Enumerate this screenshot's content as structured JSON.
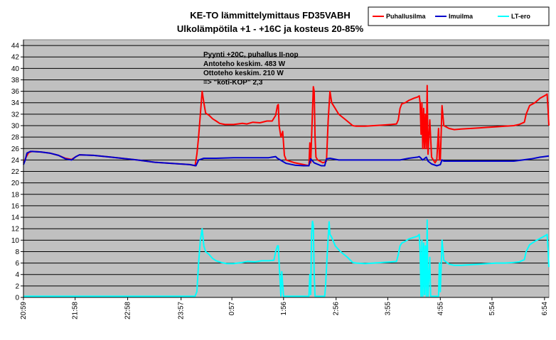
{
  "chart_data": {
    "type": "line",
    "title": "KE-TO lämmittelymittaus FD35VABH",
    "subtitle": "Ulkolämpötila +1 - +16C ja kosteus 20-85%",
    "xlabel": "",
    "ylabel": "",
    "ylim": [
      0,
      45
    ],
    "yticks": [
      0,
      2,
      4,
      6,
      8,
      10,
      12,
      14,
      16,
      18,
      20,
      22,
      24,
      26,
      28,
      30,
      32,
      34,
      36,
      38,
      40,
      42,
      44
    ],
    "xlim": [
      0,
      600
    ],
    "x_tick_labels": [
      {
        "x": 0,
        "label": "20:59"
      },
      {
        "x": 59,
        "label": "21:58"
      },
      {
        "x": 119,
        "label": "22:58"
      },
      {
        "x": 180,
        "label": "23:57"
      },
      {
        "x": 238,
        "label": "0:57"
      },
      {
        "x": 297,
        "label": "1:56"
      },
      {
        "x": 357,
        "label": "2:56"
      },
      {
        "x": 416,
        "label": "3:55"
      },
      {
        "x": 476,
        "label": "4:55"
      },
      {
        "x": 535,
        "label": "5:54"
      },
      {
        "x": 595,
        "label": "6:54"
      }
    ],
    "grid": true,
    "legend_position": "top-right",
    "annotations": [
      "Pyynti +20C, puhallus II-nop",
      "Antoteho keskim. 483 W",
      "Ottoteho keskim. 210 W",
      "=> \"koti-KOP\" 2,3"
    ],
    "series": [
      {
        "name": "Puhallusilma",
        "color": "#ff0000",
        "points": [
          [
            0,
            23.5
          ],
          [
            3,
            24.5
          ],
          [
            6,
            25.3
          ],
          [
            10,
            25.5
          ],
          [
            20,
            25.4
          ],
          [
            30,
            25.2
          ],
          [
            40,
            24.8
          ],
          [
            48,
            24.3
          ],
          [
            55,
            24.1
          ],
          [
            60,
            24.6
          ],
          [
            64,
            24.9
          ],
          [
            80,
            24.8
          ],
          [
            100,
            24.5
          ],
          [
            130,
            24.0
          ],
          [
            150,
            23.6
          ],
          [
            170,
            23.4
          ],
          [
            190,
            23.2
          ],
          [
            196,
            23.0
          ],
          [
            198,
            25.0
          ],
          [
            200,
            28.0
          ],
          [
            202,
            32.0
          ],
          [
            204,
            36.0
          ],
          [
            206,
            34.0
          ],
          [
            208,
            32.2
          ],
          [
            212,
            31.8
          ],
          [
            216,
            31.2
          ],
          [
            220,
            30.8
          ],
          [
            224,
            30.4
          ],
          [
            230,
            30.2
          ],
          [
            240,
            30.2
          ],
          [
            250,
            30.4
          ],
          [
            255,
            30.3
          ],
          [
            262,
            30.6
          ],
          [
            270,
            30.5
          ],
          [
            278,
            30.8
          ],
          [
            284,
            30.8
          ],
          [
            288,
            31.8
          ],
          [
            290,
            33.5
          ],
          [
            291,
            33.7
          ],
          [
            292,
            30.0
          ],
          [
            294,
            28.0
          ],
          [
            296,
            29.0
          ],
          [
            298,
            24.8
          ],
          [
            300,
            24.0
          ],
          [
            310,
            23.5
          ],
          [
            320,
            23.2
          ],
          [
            326,
            23.0
          ],
          [
            327,
            27.0
          ],
          [
            328,
            23.5
          ],
          [
            330,
            32.5
          ],
          [
            331,
            36.8
          ],
          [
            332,
            36.0
          ],
          [
            333,
            28.0
          ],
          [
            334,
            24.5
          ],
          [
            336,
            24.0
          ],
          [
            342,
            23.5
          ],
          [
            346,
            23.8
          ],
          [
            348,
            31.0
          ],
          [
            350,
            36.0
          ],
          [
            352,
            34.0
          ],
          [
            356,
            33.0
          ],
          [
            360,
            32.0
          ],
          [
            368,
            31.0
          ],
          [
            376,
            30.0
          ],
          [
            380,
            29.9
          ],
          [
            390,
            29.9
          ],
          [
            400,
            30.0
          ],
          [
            410,
            30.1
          ],
          [
            420,
            30.2
          ],
          [
            426,
            30.3
          ],
          [
            428,
            31.0
          ],
          [
            430,
            33.0
          ],
          [
            432,
            33.8
          ],
          [
            436,
            34.0
          ],
          [
            440,
            34.4
          ],
          [
            446,
            34.8
          ],
          [
            450,
            35.0
          ],
          [
            452,
            35.2
          ],
          [
            453,
            34.0
          ],
          [
            454,
            28.5
          ],
          [
            455,
            34.0
          ],
          [
            456,
            26.0
          ],
          [
            457,
            33.0
          ],
          [
            458,
            26.0
          ],
          [
            459,
            32.0
          ],
          [
            460,
            26.0
          ],
          [
            461,
            37.0
          ],
          [
            462,
            25.0
          ],
          [
            464,
            31.0
          ],
          [
            466,
            24.5
          ],
          [
            470,
            23.5
          ],
          [
            472,
            24.0
          ],
          [
            474,
            29.5
          ],
          [
            475,
            24.0
          ],
          [
            476,
            24.0
          ],
          [
            478,
            33.5
          ],
          [
            480,
            30.0
          ],
          [
            486,
            29.5
          ],
          [
            492,
            29.3
          ],
          [
            500,
            29.4
          ],
          [
            510,
            29.5
          ],
          [
            520,
            29.6
          ],
          [
            530,
            29.7
          ],
          [
            540,
            29.8
          ],
          [
            550,
            29.9
          ],
          [
            560,
            30.0
          ],
          [
            566,
            30.2
          ],
          [
            572,
            30.6
          ],
          [
            574,
            32.0
          ],
          [
            578,
            33.5
          ],
          [
            584,
            34.0
          ],
          [
            590,
            34.8
          ],
          [
            596,
            35.3
          ],
          [
            598,
            35.5
          ],
          [
            599,
            33.0
          ],
          [
            600,
            30.0
          ]
        ]
      },
      {
        "name": "Imuilma",
        "color": "#0000cc",
        "points": [
          [
            0,
            23.2
          ],
          [
            2,
            24.0
          ],
          [
            4,
            25.2
          ],
          [
            8,
            25.5
          ],
          [
            20,
            25.4
          ],
          [
            30,
            25.2
          ],
          [
            40,
            24.8
          ],
          [
            48,
            24.2
          ],
          [
            55,
            24.0
          ],
          [
            60,
            24.6
          ],
          [
            64,
            24.9
          ],
          [
            80,
            24.8
          ],
          [
            100,
            24.5
          ],
          [
            130,
            24.0
          ],
          [
            150,
            23.6
          ],
          [
            170,
            23.4
          ],
          [
            190,
            23.2
          ],
          [
            197,
            23.0
          ],
          [
            200,
            24.0
          ],
          [
            206,
            24.3
          ],
          [
            220,
            24.3
          ],
          [
            240,
            24.4
          ],
          [
            260,
            24.4
          ],
          [
            280,
            24.4
          ],
          [
            288,
            24.6
          ],
          [
            290,
            24.3
          ],
          [
            300,
            23.4
          ],
          [
            310,
            23.1
          ],
          [
            320,
            23.0
          ],
          [
            326,
            23.0
          ],
          [
            328,
            24.2
          ],
          [
            332,
            23.5
          ],
          [
            340,
            23.0
          ],
          [
            344,
            23.0
          ],
          [
            346,
            24.2
          ],
          [
            350,
            24.3
          ],
          [
            360,
            24.0
          ],
          [
            380,
            24.0
          ],
          [
            400,
            24.0
          ],
          [
            420,
            24.0
          ],
          [
            430,
            24.0
          ],
          [
            440,
            24.3
          ],
          [
            450,
            24.5
          ],
          [
            452,
            24.6
          ],
          [
            456,
            24.0
          ],
          [
            460,
            24.5
          ],
          [
            462,
            23.8
          ],
          [
            466,
            23.3
          ],
          [
            472,
            23.0
          ],
          [
            476,
            23.2
          ],
          [
            478,
            24.0
          ],
          [
            480,
            23.8
          ],
          [
            500,
            23.8
          ],
          [
            520,
            23.8
          ],
          [
            540,
            23.8
          ],
          [
            560,
            23.8
          ],
          [
            570,
            24.0
          ],
          [
            580,
            24.2
          ],
          [
            590,
            24.5
          ],
          [
            600,
            24.7
          ]
        ]
      },
      {
        "name": "LT-ero",
        "color": "#00ffff",
        "points": [
          [
            0,
            0.2
          ],
          [
            60,
            0.2
          ],
          [
            120,
            0.2
          ],
          [
            180,
            0.2
          ],
          [
            196,
            0.2
          ],
          [
            198,
            1.0
          ],
          [
            200,
            6.0
          ],
          [
            202,
            10.0
          ],
          [
            204,
            12.0
          ],
          [
            206,
            9.0
          ],
          [
            208,
            8.0
          ],
          [
            212,
            7.5
          ],
          [
            216,
            6.8
          ],
          [
            220,
            6.4
          ],
          [
            226,
            6.1
          ],
          [
            232,
            5.9
          ],
          [
            240,
            5.9
          ],
          [
            250,
            6.1
          ],
          [
            256,
            6.3
          ],
          [
            264,
            6.2
          ],
          [
            272,
            6.4
          ],
          [
            280,
            6.4
          ],
          [
            286,
            6.5
          ],
          [
            288,
            8.0
          ],
          [
            290,
            9.0
          ],
          [
            291,
            9.0
          ],
          [
            292,
            6.0
          ],
          [
            294,
            0.2
          ],
          [
            295,
            4.5
          ],
          [
            297,
            0.2
          ],
          [
            320,
            0.2
          ],
          [
            326,
            0.2
          ],
          [
            327,
            4.0
          ],
          [
            328,
            0.5
          ],
          [
            329,
            11.0
          ],
          [
            330,
            13.3
          ],
          [
            331,
            12.5
          ],
          [
            332,
            4.0
          ],
          [
            333,
            0.2
          ],
          [
            344,
            0.2
          ],
          [
            345,
            2.0
          ],
          [
            347,
            8.0
          ],
          [
            349,
            13.2
          ],
          [
            350,
            11.0
          ],
          [
            352,
            10.5
          ],
          [
            356,
            9.0
          ],
          [
            362,
            8.0
          ],
          [
            370,
            7.0
          ],
          [
            376,
            6.1
          ],
          [
            380,
            6.0
          ],
          [
            390,
            5.9
          ],
          [
            400,
            6.0
          ],
          [
            410,
            6.1
          ],
          [
            420,
            6.2
          ],
          [
            426,
            6.3
          ],
          [
            428,
            7.5
          ],
          [
            430,
            9.0
          ],
          [
            432,
            9.5
          ],
          [
            436,
            9.8
          ],
          [
            440,
            10.2
          ],
          [
            446,
            10.5
          ],
          [
            450,
            10.7
          ],
          [
            452,
            11.0
          ],
          [
            453,
            8.0
          ],
          [
            454,
            0.2
          ],
          [
            455,
            10.0
          ],
          [
            456,
            0.2
          ],
          [
            457,
            9.5
          ],
          [
            458,
            0.5
          ],
          [
            459,
            9.0
          ],
          [
            460,
            0.2
          ],
          [
            461,
            13.5
          ],
          [
            462,
            0.2
          ],
          [
            464,
            7.0
          ],
          [
            465,
            0.2
          ],
          [
            474,
            0.2
          ],
          [
            475,
            6.0
          ],
          [
            476,
            1.0
          ],
          [
            478,
            10.0
          ],
          [
            480,
            6.5
          ],
          [
            486,
            5.8
          ],
          [
            492,
            5.6
          ],
          [
            500,
            5.6
          ],
          [
            510,
            5.7
          ],
          [
            520,
            5.8
          ],
          [
            530,
            5.9
          ],
          [
            540,
            6.0
          ],
          [
            550,
            6.0
          ],
          [
            560,
            6.1
          ],
          [
            566,
            6.2
          ],
          [
            572,
            6.6
          ],
          [
            574,
            8.0
          ],
          [
            578,
            9.2
          ],
          [
            584,
            9.8
          ],
          [
            590,
            10.3
          ],
          [
            596,
            10.8
          ],
          [
            598,
            11.0
          ],
          [
            599,
            8.5
          ],
          [
            600,
            5.3
          ]
        ]
      }
    ]
  }
}
